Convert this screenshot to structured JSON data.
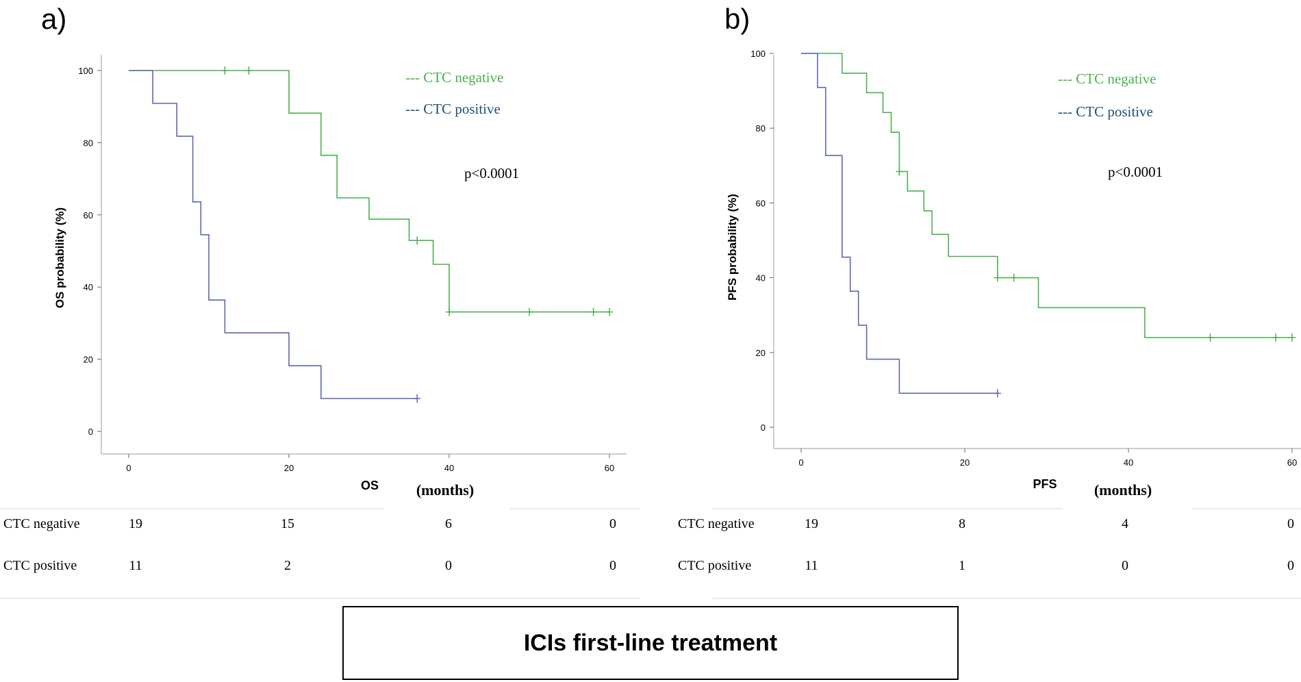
{
  "colors": {
    "negative": "#4caf50",
    "positive": "#5b67b0",
    "legend_positive_text": "#1f4e79",
    "axis": "#000000"
  },
  "footer": {
    "label": "ICIs first-line treatment"
  },
  "chart_data": [
    {
      "type": "line",
      "panel_label": "a)",
      "title": "",
      "ylabel": "OS probability (%)",
      "xlabel": "OS",
      "xlabel_unit": "(months)",
      "xlim": [
        0,
        60
      ],
      "ylim": [
        0,
        100
      ],
      "xticks": [
        "0",
        "20",
        "40",
        "60"
      ],
      "yticks": [
        "0",
        "20",
        "40",
        "60",
        "80",
        "100"
      ],
      "annotation": "p<0.0001",
      "legend": [
        "--- CTC negative",
        "--- CTC positive"
      ],
      "series": [
        {
          "name": "CTC negative",
          "step": [
            [
              0,
              100
            ],
            [
              20,
              100
            ],
            [
              20,
              88.2
            ],
            [
              24,
              88.2
            ],
            [
              24,
              76.5
            ],
            [
              26,
              76.5
            ],
            [
              26,
              64.7
            ],
            [
              30,
              64.7
            ],
            [
              30,
              58.8
            ],
            [
              35,
              58.8
            ],
            [
              35,
              52.9
            ],
            [
              38,
              52.9
            ],
            [
              38,
              46.3
            ],
            [
              40,
              46.3
            ],
            [
              40,
              33.1
            ],
            [
              60,
              33.1
            ]
          ],
          "censored": [
            [
              12,
              100
            ],
            [
              15,
              100
            ],
            [
              36,
              52.9
            ],
            [
              40,
              33.1
            ],
            [
              50,
              33.1
            ],
            [
              58,
              33.1
            ],
            [
              60,
              33.1
            ]
          ]
        },
        {
          "name": "CTC positive",
          "step": [
            [
              0,
              100
            ],
            [
              3,
              100
            ],
            [
              3,
              90.9
            ],
            [
              6,
              90.9
            ],
            [
              6,
              81.8
            ],
            [
              8,
              81.8
            ],
            [
              8,
              63.6
            ],
            [
              9,
              63.6
            ],
            [
              9,
              54.5
            ],
            [
              10,
              54.5
            ],
            [
              10,
              36.4
            ],
            [
              12,
              36.4
            ],
            [
              12,
              27.3
            ],
            [
              20,
              27.3
            ],
            [
              20,
              18.2
            ],
            [
              24,
              18.2
            ],
            [
              24,
              9.1
            ],
            [
              36,
              9.1
            ]
          ],
          "censored": [
            [
              36,
              9.1
            ]
          ]
        }
      ],
      "risk_table": {
        "rows": [
          {
            "label": "CTC negative",
            "values": [
              "19",
              "15",
              "6",
              "0"
            ]
          },
          {
            "label": "CTC positive",
            "values": [
              "11",
              "2",
              "0",
              "0"
            ]
          }
        ]
      }
    },
    {
      "type": "line",
      "panel_label": "b)",
      "title": "",
      "ylabel": "PFS probability (%)",
      "xlabel": "PFS",
      "xlabel_unit": "(months)",
      "xlim": [
        0,
        60
      ],
      "ylim": [
        0,
        100
      ],
      "xticks": [
        "0",
        "20",
        "40",
        "60"
      ],
      "yticks": [
        "0",
        "20",
        "40",
        "60",
        "80",
        "100"
      ],
      "annotation": "p<0.0001",
      "legend": [
        "--- CTC negative",
        "--- CTC positive"
      ],
      "series": [
        {
          "name": "CTC negative",
          "step": [
            [
              0,
              100
            ],
            [
              5,
              100
            ],
            [
              5,
              94.7
            ],
            [
              8,
              94.7
            ],
            [
              8,
              89.5
            ],
            [
              10,
              89.5
            ],
            [
              10,
              84.2
            ],
            [
              11,
              84.2
            ],
            [
              11,
              78.9
            ],
            [
              12,
              78.9
            ],
            [
              12,
              68.4
            ],
            [
              13,
              68.4
            ],
            [
              13,
              63.2
            ],
            [
              15,
              63.2
            ],
            [
              15,
              57.9
            ],
            [
              16,
              57.9
            ],
            [
              16,
              51.6
            ],
            [
              18,
              51.6
            ],
            [
              18,
              45.7
            ],
            [
              24,
              45.7
            ],
            [
              24,
              40
            ],
            [
              29,
              40
            ],
            [
              29,
              32
            ],
            [
              42,
              32
            ],
            [
              42,
              24
            ],
            [
              60,
              24
            ]
          ],
          "censored": [
            [
              12,
              68.4
            ],
            [
              24,
              40
            ],
            [
              26,
              40
            ],
            [
              50,
              24
            ],
            [
              58,
              24
            ],
            [
              60,
              24
            ]
          ]
        },
        {
          "name": "CTC positive",
          "step": [
            [
              0,
              100
            ],
            [
              2,
              100
            ],
            [
              2,
              90.9
            ],
            [
              3,
              90.9
            ],
            [
              3,
              72.7
            ],
            [
              5,
              72.7
            ],
            [
              5,
              45.5
            ],
            [
              6,
              45.5
            ],
            [
              6,
              36.4
            ],
            [
              7,
              36.4
            ],
            [
              7,
              27.3
            ],
            [
              8,
              27.3
            ],
            [
              8,
              18.2
            ],
            [
              12,
              18.2
            ],
            [
              12,
              9.1
            ],
            [
              24,
              9.1
            ]
          ],
          "censored": [
            [
              24,
              9.1
            ]
          ]
        }
      ],
      "risk_table": {
        "rows": [
          {
            "label": "CTC negative",
            "values": [
              "19",
              "8",
              "4",
              "0"
            ]
          },
          {
            "label": "CTC positive",
            "values": [
              "11",
              "1",
              "0",
              "0"
            ]
          }
        ]
      }
    }
  ]
}
